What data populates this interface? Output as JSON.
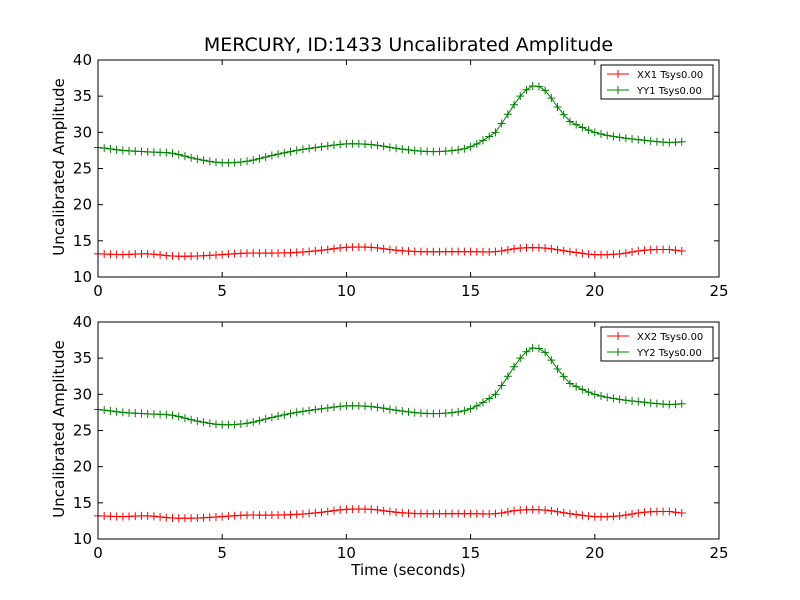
{
  "figure": {
    "title": "MERCURY, ID:1433 Uncalibrated Amplitude",
    "xlabel": "Time (seconds)"
  },
  "chart_data": [
    {
      "type": "line",
      "ylabel": "Uncalibrated Amplitude",
      "xlabel": "",
      "xlim": [
        0,
        25
      ],
      "ylim": [
        10,
        40
      ],
      "xticks": [
        0,
        5,
        10,
        15,
        20,
        25
      ],
      "yticks": [
        10,
        15,
        20,
        25,
        30,
        35,
        40
      ],
      "grid": false,
      "legend_position": "top-right",
      "marker": "+",
      "series": [
        {
          "name": "XX1 Tsys0.00",
          "color": "#ff0000",
          "points": [
            [
              0,
              13.2
            ],
            [
              1,
              13.1
            ],
            [
              2,
              13.2
            ],
            [
              3,
              12.9
            ],
            [
              4,
              12.9
            ],
            [
              5,
              13.1
            ],
            [
              6,
              13.3
            ],
            [
              7,
              13.3
            ],
            [
              8,
              13.4
            ],
            [
              9,
              13.7
            ],
            [
              10,
              14.1
            ],
            [
              11,
              14.1
            ],
            [
              12,
              13.7
            ],
            [
              13,
              13.5
            ],
            [
              14,
              13.5
            ],
            [
              15,
              13.5
            ],
            [
              16,
              13.5
            ],
            [
              17,
              14.0
            ],
            [
              18,
              14.0
            ],
            [
              19,
              13.5
            ],
            [
              20,
              13.1
            ],
            [
              21,
              13.2
            ],
            [
              22,
              13.7
            ],
            [
              23,
              13.8
            ],
            [
              23.5,
              13.6
            ]
          ]
        },
        {
          "name": "YY1 Tsys0.00",
          "color": "#008000",
          "points": [
            [
              0,
              27.9
            ],
            [
              1,
              27.5
            ],
            [
              2,
              27.3
            ],
            [
              3,
              27.1
            ],
            [
              4,
              26.3
            ],
            [
              5,
              25.8
            ],
            [
              6,
              26.0
            ],
            [
              7,
              26.8
            ],
            [
              8,
              27.5
            ],
            [
              9,
              28.0
            ],
            [
              10,
              28.4
            ],
            [
              11,
              28.3
            ],
            [
              12,
              27.8
            ],
            [
              13,
              27.4
            ],
            [
              14,
              27.4
            ],
            [
              15,
              28.0
            ],
            [
              16,
              30.0
            ],
            [
              16.5,
              32.5
            ],
            [
              17,
              35.0
            ],
            [
              17.5,
              36.4
            ],
            [
              18,
              35.8
            ],
            [
              18.5,
              33.5
            ],
            [
              19,
              31.5
            ],
            [
              20,
              30.0
            ],
            [
              21,
              29.3
            ],
            [
              22,
              28.9
            ],
            [
              23,
              28.6
            ],
            [
              23.5,
              28.7
            ]
          ]
        }
      ]
    },
    {
      "type": "line",
      "ylabel": "Uncalibrated Amplitude",
      "xlabel": "Time (seconds)",
      "xlim": [
        0,
        25
      ],
      "ylim": [
        10,
        40
      ],
      "xticks": [
        0,
        5,
        10,
        15,
        20,
        25
      ],
      "yticks": [
        10,
        15,
        20,
        25,
        30,
        35,
        40
      ],
      "grid": false,
      "legend_position": "top-right",
      "marker": "+",
      "series": [
        {
          "name": "XX2 Tsys0.00",
          "color": "#ff0000",
          "points": [
            [
              0,
              13.2
            ],
            [
              1,
              13.1
            ],
            [
              2,
              13.2
            ],
            [
              3,
              12.9
            ],
            [
              4,
              12.9
            ],
            [
              5,
              13.1
            ],
            [
              6,
              13.3
            ],
            [
              7,
              13.3
            ],
            [
              8,
              13.4
            ],
            [
              9,
              13.7
            ],
            [
              10,
              14.1
            ],
            [
              11,
              14.1
            ],
            [
              12,
              13.7
            ],
            [
              13,
              13.5
            ],
            [
              14,
              13.5
            ],
            [
              15,
              13.5
            ],
            [
              16,
              13.5
            ],
            [
              17,
              14.0
            ],
            [
              18,
              14.0
            ],
            [
              19,
              13.5
            ],
            [
              20,
              13.1
            ],
            [
              21,
              13.2
            ],
            [
              22,
              13.7
            ],
            [
              23,
              13.8
            ],
            [
              23.5,
              13.6
            ]
          ]
        },
        {
          "name": "YY2 Tsys0.00",
          "color": "#008000",
          "points": [
            [
              0,
              27.9
            ],
            [
              1,
              27.5
            ],
            [
              2,
              27.3
            ],
            [
              3,
              27.1
            ],
            [
              4,
              26.3
            ],
            [
              5,
              25.8
            ],
            [
              6,
              26.0
            ],
            [
              7,
              26.8
            ],
            [
              8,
              27.5
            ],
            [
              9,
              28.0
            ],
            [
              10,
              28.4
            ],
            [
              11,
              28.3
            ],
            [
              12,
              27.8
            ],
            [
              13,
              27.4
            ],
            [
              14,
              27.4
            ],
            [
              15,
              28.0
            ],
            [
              16,
              30.0
            ],
            [
              16.5,
              32.5
            ],
            [
              17,
              35.0
            ],
            [
              17.5,
              36.4
            ],
            [
              18,
              35.8
            ],
            [
              18.5,
              33.5
            ],
            [
              19,
              31.5
            ],
            [
              20,
              30.0
            ],
            [
              21,
              29.3
            ],
            [
              22,
              28.9
            ],
            [
              23,
              28.6
            ],
            [
              23.5,
              28.7
            ]
          ]
        }
      ]
    }
  ]
}
